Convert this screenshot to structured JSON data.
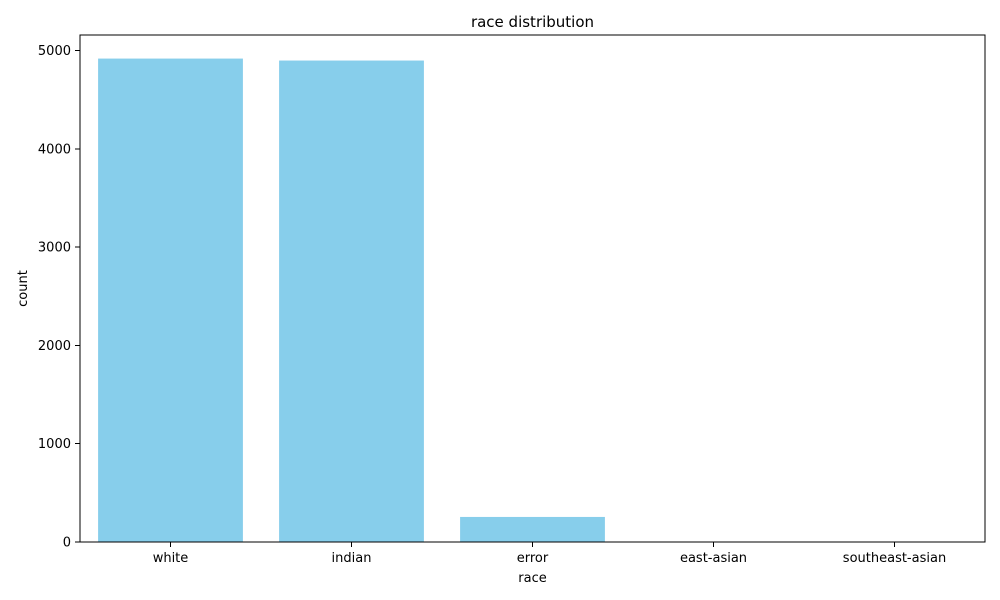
{
  "chart_data": {
    "type": "bar",
    "title": "race distribution",
    "xlabel": "race",
    "ylabel": "count",
    "categories": [
      "white",
      "indian",
      "error",
      "east-asian",
      "southeast-asian"
    ],
    "values": [
      4920,
      4900,
      255,
      0,
      0
    ],
    "ylim": [
      0,
      5160
    ],
    "yticks": [
      0,
      1000,
      2000,
      3000,
      4000,
      5000
    ],
    "ytick_labels": [
      "0",
      "1000",
      "2000",
      "3000",
      "4000",
      "5000"
    ],
    "bar_color": "#87CEEB",
    "grid": false,
    "legend": "none"
  }
}
